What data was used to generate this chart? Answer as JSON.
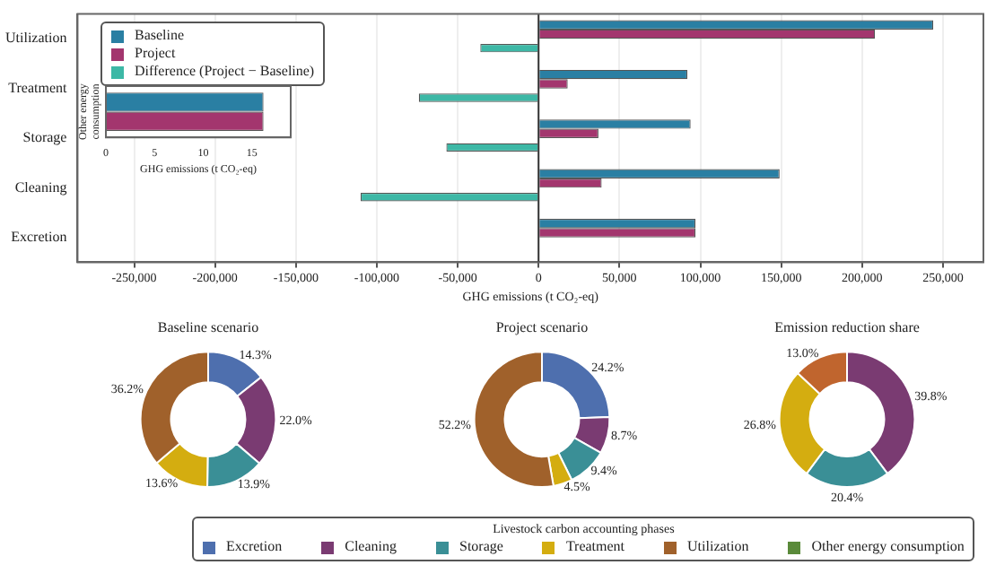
{
  "chart_data": [
    {
      "type": "bar",
      "orientation": "horizontal",
      "categories": [
        "Utilization",
        "Treatment",
        "Storage",
        "Cleaning",
        "Excretion"
      ],
      "xlabel": "GHG emissions (t CO₂-eq)",
      "xlim": [
        -285000,
        275000
      ],
      "xticks": [
        {
          "value": -250000,
          "label": "-250,000"
        },
        {
          "value": -200000,
          "label": "-200,000"
        },
        {
          "value": -150000,
          "label": "-150,000"
        },
        {
          "value": -100000,
          "label": "-100,000"
        },
        {
          "value": -50000,
          "label": "-50,000"
        },
        0,
        {
          "value": 50000,
          "label": "50,000"
        },
        {
          "value": 100000,
          "label": "100,000"
        },
        {
          "value": 150000,
          "label": "150,000"
        },
        {
          "value": 200000,
          "label": "200,000"
        },
        {
          "value": 250000,
          "label": "250,000"
        }
      ],
      "grid": "x",
      "legend": "top left",
      "series": [
        {
          "name": "Baseline",
          "color": "#2a7fa3",
          "values": [
            244000,
            92000,
            94000,
            149000,
            97000
          ]
        },
        {
          "name": "Project",
          "color": "#a3366e",
          "values": [
            208000,
            18000,
            37000,
            39000,
            97000
          ]
        },
        {
          "name": "Difference (Project − Baseline)",
          "color": "#3db8a6",
          "values": [
            -36000,
            -74000,
            -57000,
            -110000,
            0
          ]
        }
      ],
      "ref_lines": [
        {
          "axis": "x",
          "value": 0,
          "color": "#333333"
        }
      ]
    },
    {
      "type": "bar",
      "orientation": "horizontal",
      "categories": [
        "Other energy consumption"
      ],
      "xlabel": "GHG emissions (t CO₂-eq)",
      "xlim": [
        0,
        19
      ],
      "xticks": [
        0,
        5,
        10,
        15
      ],
      "series": [
        {
          "color": "#2a7fa3",
          "values": [
            16.2
          ]
        },
        {
          "color": "#a3366e",
          "values": [
            16.2
          ]
        }
      ]
    },
    {
      "type": "donut",
      "title": "Baseline scenario",
      "categories": [
        "Excretion",
        "Cleaning",
        "Storage",
        "Treatment",
        "Utilization",
        "Other energy consumption"
      ],
      "values": [
        14.3,
        22.0,
        13.9,
        13.6,
        36.2,
        0
      ],
      "value_labels": [
        "14.3%",
        "22.0%",
        "13.9%",
        "13.6%",
        "36.2%",
        null
      ],
      "colors": [
        "#4e6fae",
        "#7a3b72",
        "#3a8f96",
        "#d4ad10",
        "#a0612b",
        "#5a8a3a"
      ],
      "legend": "bottom",
      "legend_title": "Livestock carbon accounting phases"
    },
    {
      "type": "donut",
      "title": "Project scenario",
      "categories": [
        null,
        null,
        null,
        null,
        null,
        null
      ],
      "values": [
        24.2,
        8.7,
        9.4,
        4.5,
        52.2,
        0
      ],
      "value_labels": [
        "24.2%",
        "8.7%",
        "9.4%",
        "4.5%",
        "52.2%",
        null
      ],
      "colors": [
        "#4e6fae",
        "#7a3b72",
        "#3a8f96",
        "#d4ad10",
        "#a0612b",
        "#5a8a3a"
      ]
    },
    {
      "type": "donut",
      "title": "Emission reduction share",
      "categories": [
        null,
        null,
        null,
        null,
        null,
        null
      ],
      "values": [
        0,
        39.8,
        20.4,
        26.8,
        13.0,
        0
      ],
      "value_labels": [
        null,
        "39.8%",
        "20.4%",
        "26.8%",
        "13.0%",
        null
      ],
      "colors": [
        "#4e6fae",
        "#7a3b72",
        "#3a8f96",
        "#d4ad10",
        "#c0652e",
        "#5a8a3a"
      ]
    }
  ]
}
